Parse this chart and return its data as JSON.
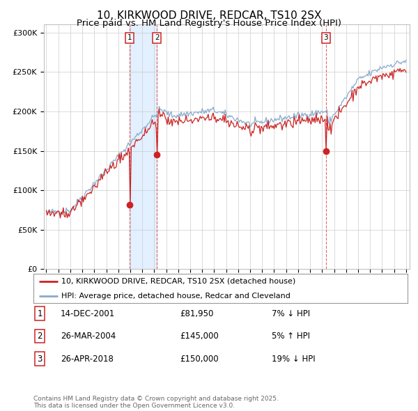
{
  "title": "10, KIRKWOOD DRIVE, REDCAR, TS10 2SX",
  "subtitle": "Price paid vs. HM Land Registry's House Price Index (HPI)",
  "title_fontsize": 11,
  "subtitle_fontsize": 9.5,
  "ylim": [
    0,
    310000
  ],
  "yticks": [
    0,
    50000,
    100000,
    150000,
    200000,
    250000,
    300000
  ],
  "ytick_labels": [
    "£0",
    "£50K",
    "£100K",
    "£150K",
    "£200K",
    "£250K",
    "£300K"
  ],
  "background_color": "#ffffff",
  "plot_bg_color": "#ffffff",
  "grid_color": "#cccccc",
  "line1_color": "#cc2222",
  "line2_color": "#88aacc",
  "sale1_date": 2001.96,
  "sale1_price": 81950,
  "sale1_label": "1",
  "sale2_date": 2004.23,
  "sale2_price": 145000,
  "sale2_label": "2",
  "sale3_date": 2018.32,
  "sale3_price": 150000,
  "sale3_label": "3",
  "sale_marker_color": "#cc2222",
  "shade_color": "#ddeeff",
  "legend_line1": "10, KIRKWOOD DRIVE, REDCAR, TS10 2SX (detached house)",
  "legend_line2": "HPI: Average price, detached house, Redcar and Cleveland",
  "table_rows": [
    [
      "1",
      "14-DEC-2001",
      "£81,950",
      "7% ↓ HPI"
    ],
    [
      "2",
      "26-MAR-2004",
      "£145,000",
      "5% ↑ HPI"
    ],
    [
      "3",
      "26-APR-2018",
      "£150,000",
      "19% ↓ HPI"
    ]
  ],
  "footnote": "Contains HM Land Registry data © Crown copyright and database right 2025.\nThis data is licensed under the Open Government Licence v3.0.",
  "xstart": 1995,
  "xend": 2025,
  "seed": 42
}
